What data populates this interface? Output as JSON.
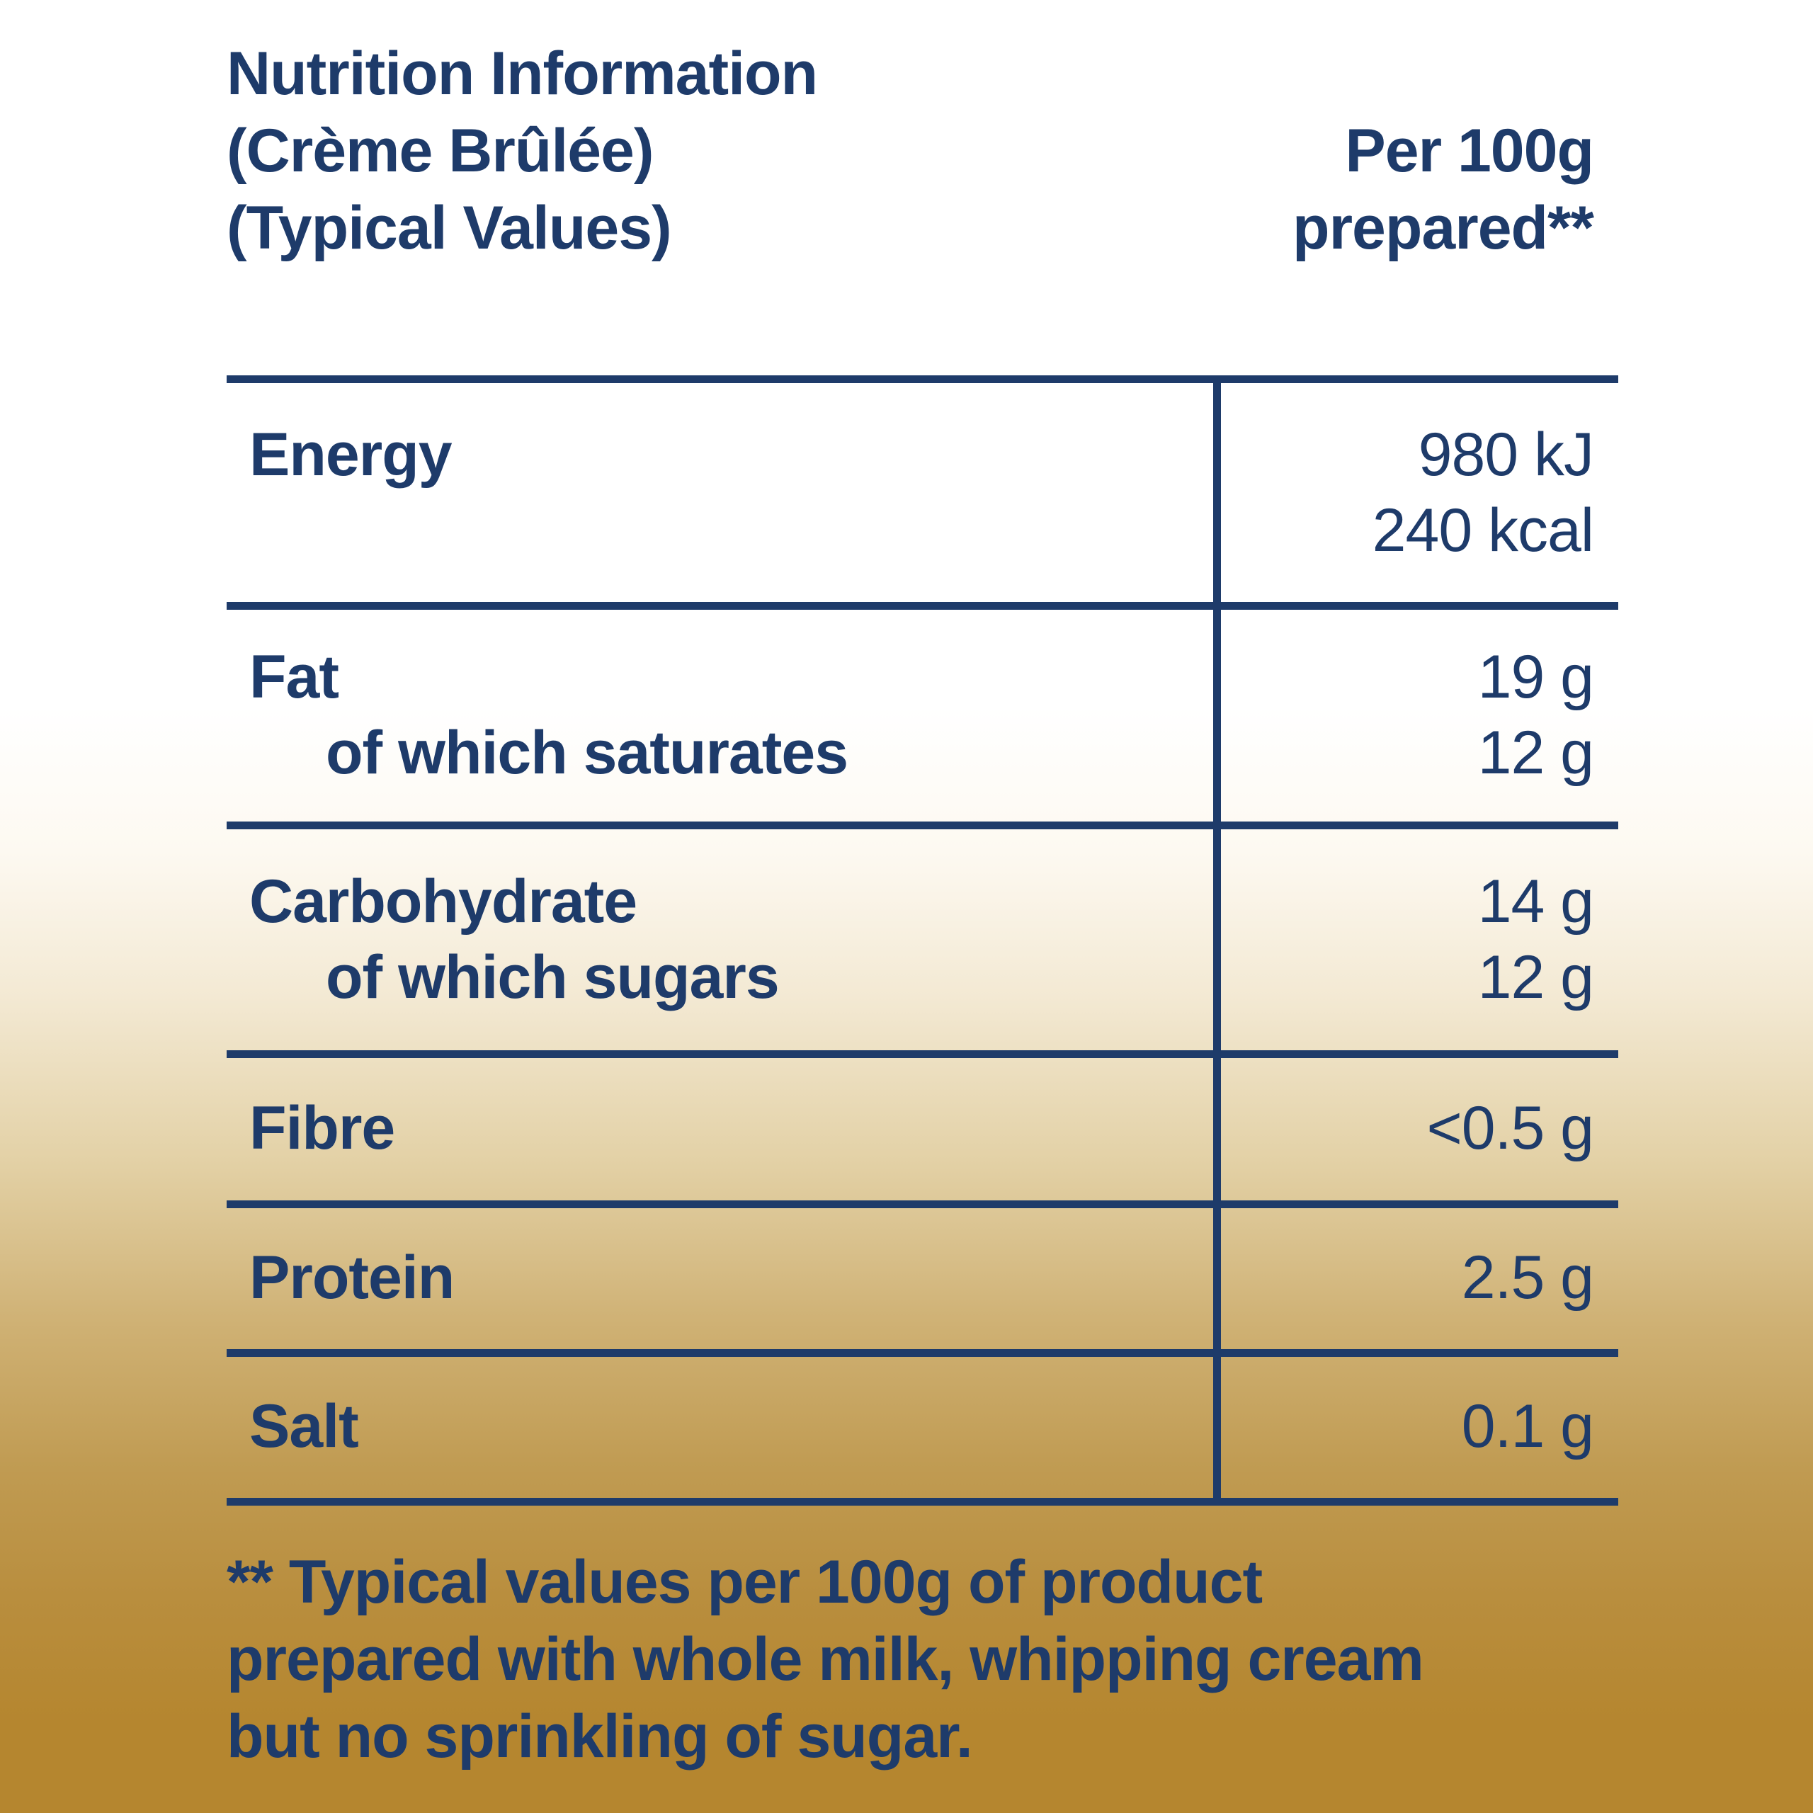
{
  "title": {
    "line1": "Nutrition Information",
    "line2": "(Crème Brûlée)",
    "line3": "(Typical Values)"
  },
  "column_header": {
    "line1": "Per 100g",
    "line2": "prepared**"
  },
  "table": {
    "rows": [
      {
        "label": "Energy",
        "sublabel": "",
        "values": [
          "980 kJ",
          "240 kcal"
        ]
      },
      {
        "label": "Fat",
        "sublabel": "of which saturates",
        "values": [
          "19 g",
          "12 g"
        ]
      },
      {
        "label": "Carbohydrate",
        "sublabel": "of which sugars",
        "values": [
          "14 g",
          "12 g"
        ]
      },
      {
        "label": "Fibre",
        "sublabel": "",
        "values": [
          "<0.5 g"
        ]
      },
      {
        "label": "Protein",
        "sublabel": "",
        "values": [
          "2.5 g"
        ]
      },
      {
        "label": "Salt",
        "sublabel": "",
        "values": [
          "0.1 g"
        ]
      }
    ]
  },
  "footnote_lines": [
    "** Typical values per 100g of product",
    "prepared with whole milk, whipping cream",
    "but no sprinkling of sugar."
  ],
  "colors": {
    "text_navy": "#1e3b6a",
    "background_gold": "#b5862f",
    "background_top": "#ffffff"
  }
}
